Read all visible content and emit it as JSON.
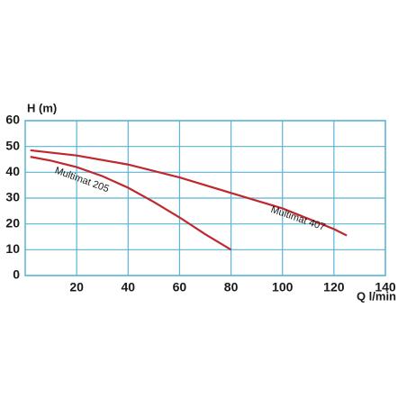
{
  "chart_data": {
    "type": "line",
    "y_label": "H (m)",
    "x_label": "Q l/min",
    "xlim": [
      0,
      140
    ],
    "xticks": [
      20,
      40,
      60,
      80,
      100,
      120,
      140
    ],
    "ylim": [
      0,
      60
    ],
    "yticks": [
      0,
      10,
      20,
      30,
      40,
      50,
      60
    ],
    "grid": true,
    "series": [
      {
        "name": "Multimat 205",
        "color": "#c0282d",
        "x": [
          2,
          10,
          20,
          30,
          40,
          50,
          60,
          70,
          80
        ],
        "values": [
          46,
          44.5,
          42,
          38.5,
          34,
          28.5,
          22.5,
          16,
          10
        ]
      },
      {
        "name": "Multimat 407",
        "color": "#c0282d",
        "x": [
          2,
          20,
          40,
          60,
          80,
          100,
          120,
          125
        ],
        "values": [
          48.5,
          46.5,
          43,
          38,
          32,
          26,
          18,
          15.5
        ]
      }
    ]
  }
}
